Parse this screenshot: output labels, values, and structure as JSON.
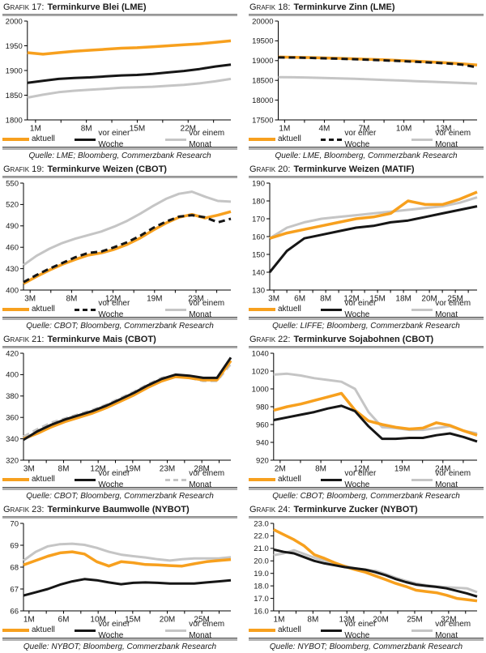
{
  "colors": {
    "aktuell": "#F7A01E",
    "woche": "#161616",
    "monat": "#C5C5C5"
  },
  "chart_data": [
    {
      "type": "line",
      "grid": false,
      "legend_position": "bottom",
      "number_label": "Grafik 17:",
      "title": "Terminkurve Blei (LME)",
      "source": "Quelle: LME; Bloomberg, Commerzbank Research",
      "ylim": [
        1800,
        2000
      ],
      "yticks": [
        "1800",
        "1850",
        "1900",
        "1950",
        "2000"
      ],
      "xlabels": [
        "1M",
        "8M",
        "15M",
        "22M"
      ],
      "series": [
        {
          "name": "aktuell",
          "key": "aktuell",
          "dash": false,
          "z": 2,
          "values": [
            1936,
            1933,
            1936,
            1939,
            1941,
            1943,
            1945,
            1946,
            1948,
            1950,
            1952,
            1954,
            1957,
            1960
          ]
        },
        {
          "name": "vor einer Woche",
          "key": "woche",
          "dash": false,
          "z": 3,
          "values": [
            1875,
            1879,
            1883,
            1885,
            1886,
            1888,
            1890,
            1891,
            1893,
            1896,
            1899,
            1903,
            1908,
            1912
          ]
        },
        {
          "name": "vor einem Monat",
          "key": "monat",
          "dash": false,
          "z": 1,
          "values": [
            1845,
            1851,
            1856,
            1859,
            1861,
            1863,
            1865,
            1866,
            1867,
            1869,
            1871,
            1874,
            1878,
            1883
          ]
        }
      ]
    },
    {
      "type": "line",
      "grid": false,
      "legend_position": "bottom",
      "number_label": "Grafik 18:",
      "title": "Terminkurve Zinn (LME)",
      "source": "Quelle: LME, Bloomberg, Commerzbank Research",
      "ylim": [
        17500,
        20000
      ],
      "yticks": [
        "17500",
        "18000",
        "18500",
        "19000",
        "19500",
        "20000"
      ],
      "xlabels": [
        "1M",
        "4M",
        "7M",
        "10M",
        "13M"
      ],
      "series": [
        {
          "name": "aktuell",
          "key": "aktuell",
          "dash": false,
          "z": 2,
          "values": [
            19090,
            19085,
            19078,
            19068,
            19058,
            19045,
            19032,
            19018,
            19000,
            18985,
            18965,
            18945,
            18920,
            18890
          ]
        },
        {
          "name": "vor einer Woche",
          "key": "woche",
          "dash": true,
          "z": 3,
          "values": [
            19080,
            19078,
            19070,
            19058,
            19048,
            19035,
            19020,
            19005,
            18988,
            18970,
            18950,
            18928,
            18900,
            18830
          ]
        },
        {
          "name": "vor einem Monat",
          "key": "monat",
          "dash": false,
          "z": 1,
          "values": [
            18580,
            18578,
            18570,
            18560,
            18550,
            18538,
            18525,
            18510,
            18495,
            18480,
            18465,
            18450,
            18435,
            18420
          ]
        }
      ]
    },
    {
      "type": "line",
      "grid": false,
      "legend_position": "bottom",
      "number_label": "Grafik 19:",
      "title": "Terminkurve Weizen (CBOT)",
      "source": "Quelle: CBOT; Bloomberg, Commerzbank Research",
      "ylim": [
        400,
        550
      ],
      "yticks": [
        "400",
        "430",
        "460",
        "490",
        "520",
        "550"
      ],
      "xlabels": [
        "3M",
        "8M",
        "12M",
        "19M",
        "23M"
      ],
      "series": [
        {
          "name": "aktuell",
          "key": "aktuell",
          "dash": false,
          "z": 2,
          "values": [
            409,
            419,
            428,
            436,
            443,
            449,
            452,
            457,
            464,
            473,
            484,
            494,
            502,
            506,
            501,
            505,
            510
          ]
        },
        {
          "name": "vor einer Woche",
          "key": "woche",
          "dash": true,
          "z": 3,
          "values": [
            411,
            421,
            430,
            438,
            446,
            452,
            454,
            460,
            467,
            476,
            487,
            496,
            503,
            505,
            502,
            495,
            500
          ]
        },
        {
          "name": "vor einem Monat",
          "key": "monat",
          "dash": false,
          "z": 1,
          "values": [
            435,
            448,
            458,
            466,
            472,
            477,
            482,
            489,
            497,
            507,
            518,
            528,
            535,
            538,
            531,
            525,
            524
          ]
        }
      ]
    },
    {
      "type": "line",
      "grid": false,
      "legend_position": "bottom",
      "number_label": "Grafik 20:",
      "title": "Terminkurve Weizen (MATIF)",
      "source": "Quelle: LIFFE; Bloomberg, Commerzbank Research",
      "ylim": [
        130,
        190
      ],
      "yticks": [
        "130",
        "140",
        "150",
        "160",
        "170",
        "180",
        "190"
      ],
      "xlabels": [
        "3M",
        "6M",
        "8M",
        "12M",
        "15M",
        "18M",
        "20M",
        "25M"
      ],
      "series": [
        {
          "name": "aktuell",
          "key": "aktuell",
          "dash": false,
          "z": 2,
          "values": [
            159,
            162,
            164,
            166,
            168,
            170,
            171,
            173,
            180,
            178,
            178,
            181,
            185
          ]
        },
        {
          "name": "vor einer Woche",
          "key": "woche",
          "dash": false,
          "z": 3,
          "values": [
            140,
            152,
            159,
            161,
            163,
            165,
            166,
            168,
            169,
            171,
            173,
            175,
            177
          ]
        },
        {
          "name": "vor einem Monat",
          "key": "monat",
          "dash": false,
          "z": 1,
          "values": [
            159,
            165,
            168,
            170,
            171,
            172,
            173,
            174,
            175,
            176,
            177,
            179,
            182
          ]
        }
      ]
    },
    {
      "type": "line",
      "grid": false,
      "legend_position": "bottom",
      "number_label": "Grafik 21:",
      "title": "Terminkurve Mais (CBOT)",
      "source": "Quelle: CBOT; Bloomberg, Commerzbank Research",
      "ylim": [
        320,
        420
      ],
      "yticks": [
        "320",
        "340",
        "360",
        "380",
        "400",
        "420"
      ],
      "xlabels": [
        "3M",
        "8M",
        "12M",
        "19M",
        "23M",
        "28M"
      ],
      "series": [
        {
          "name": "aktuell",
          "key": "aktuell",
          "dash": false,
          "z": 2,
          "values": [
            340,
            345,
            351,
            356,
            360,
            364,
            369,
            375,
            381,
            388,
            394,
            398,
            397,
            395,
            395,
            413
          ]
        },
        {
          "name": "vor einer Woche",
          "key": "woche",
          "dash": false,
          "z": 3,
          "values": [
            339,
            347,
            353,
            358,
            362,
            366,
            371,
            377,
            383,
            390,
            396,
            400,
            399,
            397,
            397,
            416
          ]
        },
        {
          "name": "vor einem Monat",
          "key": "monat",
          "dash": true,
          "z": 1,
          "values": [
            342,
            349,
            355,
            359,
            363,
            367,
            372,
            378,
            384,
            391,
            397,
            399,
            397,
            394,
            394,
            410
          ]
        }
      ]
    },
    {
      "type": "line",
      "grid": false,
      "legend_position": "bottom",
      "number_label": "Grafik 22:",
      "title": "Terminkurve Sojabohnen (CBOT)",
      "source": "Quelle: CBOT; Bloomberg, Commerzbank Research",
      "ylim": [
        920,
        1040
      ],
      "yticks": [
        "920",
        "940",
        "960",
        "980",
        "1000",
        "1020",
        "1040"
      ],
      "xlabels": [
        "2M",
        "8M",
        "12M",
        "19M",
        "24M"
      ],
      "series": [
        {
          "name": "aktuell",
          "key": "aktuell",
          "dash": false,
          "z": 2,
          "values": [
            976,
            980,
            983,
            987,
            991,
            995,
            976,
            964,
            960,
            957,
            955,
            956,
            962,
            959,
            953,
            948
          ]
        },
        {
          "name": "vor einer Woche",
          "key": "woche",
          "dash": false,
          "z": 3,
          "values": [
            965,
            968,
            971,
            974,
            978,
            981,
            975,
            958,
            944,
            944,
            945,
            945,
            948,
            950,
            946,
            941
          ]
        },
        {
          "name": "vor einem Monat",
          "key": "monat",
          "dash": false,
          "z": 1,
          "values": [
            1016,
            1017,
            1015,
            1012,
            1010,
            1008,
            1000,
            974,
            957,
            956,
            954,
            954,
            956,
            958,
            953,
            950
          ]
        }
      ]
    },
    {
      "type": "line",
      "grid": false,
      "legend_position": "bottom",
      "number_label": "Grafik 23:",
      "title": "Terminkurve Baumwolle (NYBOT)",
      "source": "Quelle: NYBOT; Bloomberg, Commerzbank Research",
      "ylim": [
        66,
        70
      ],
      "yticks": [
        "66",
        "67",
        "68",
        "69",
        "70"
      ],
      "xlabels": [
        "1M",
        "6M",
        "10M",
        "15M",
        "20M",
        "25M"
      ],
      "series": [
        {
          "name": "aktuell",
          "key": "aktuell",
          "dash": false,
          "z": 2,
          "values": [
            68.1,
            68.3,
            68.5,
            68.65,
            68.7,
            68.6,
            68.25,
            68.05,
            68.25,
            68.2,
            68.12,
            68.1,
            68.07,
            68.05,
            68.15,
            68.25,
            68.3,
            68.35
          ]
        },
        {
          "name": "vor einer Woche",
          "key": "woche",
          "dash": false,
          "z": 3,
          "values": [
            66.7,
            66.85,
            67.0,
            67.2,
            67.35,
            67.45,
            67.4,
            67.3,
            67.22,
            67.28,
            67.3,
            67.28,
            67.25,
            67.25,
            67.25,
            67.3,
            67.35,
            67.4
          ]
        },
        {
          "name": "vor einem Monat",
          "key": "monat",
          "dash": false,
          "z": 1,
          "values": [
            68.3,
            68.7,
            68.95,
            69.05,
            69.07,
            69.02,
            68.88,
            68.7,
            68.57,
            68.5,
            68.44,
            68.36,
            68.3,
            68.36,
            68.4,
            68.4,
            68.4,
            68.45
          ]
        }
      ]
    },
    {
      "type": "line",
      "grid": false,
      "legend_position": "bottom",
      "number_label": "Grafik 24:",
      "title": "Terminkurve Zucker (NYBOT)",
      "source": "Quelle: NYBOT; Bloomberg, Commerzbank Research",
      "ylim": [
        16,
        23
      ],
      "yticks": [
        "16.0",
        "17.0",
        "18.0",
        "19.0",
        "20.0",
        "21.0",
        "22.0",
        "23.0"
      ],
      "xlabels": [
        "1M",
        "8M",
        "13M",
        "20M",
        "25M",
        "32M"
      ],
      "series": [
        {
          "name": "aktuell",
          "key": "aktuell",
          "dash": false,
          "z": 2,
          "values": [
            22.5,
            22.1,
            21.7,
            21.2,
            20.5,
            20.2,
            19.85,
            19.55,
            19.3,
            19.1,
            18.8,
            18.5,
            18.2,
            17.95,
            17.65,
            17.55,
            17.45,
            17.25,
            17.0,
            16.9,
            16.8
          ]
        },
        {
          "name": "vor einer Woche",
          "key": "woche",
          "dash": false,
          "z": 3,
          "values": [
            20.9,
            20.72,
            20.6,
            20.3,
            20.0,
            19.8,
            19.65,
            19.5,
            19.4,
            19.3,
            19.1,
            18.85,
            18.55,
            18.3,
            18.1,
            18.0,
            17.92,
            17.8,
            17.6,
            17.4,
            17.15
          ]
        },
        {
          "name": "vor einem Monat",
          "key": "monat",
          "dash": false,
          "z": 1,
          "values": [
            20.45,
            20.6,
            20.85,
            20.55,
            20.25,
            20.0,
            19.8,
            19.6,
            19.4,
            19.3,
            19.2,
            18.95,
            18.65,
            18.4,
            18.2,
            18.05,
            17.95,
            17.9,
            17.85,
            17.8,
            17.5
          ]
        }
      ]
    }
  ]
}
